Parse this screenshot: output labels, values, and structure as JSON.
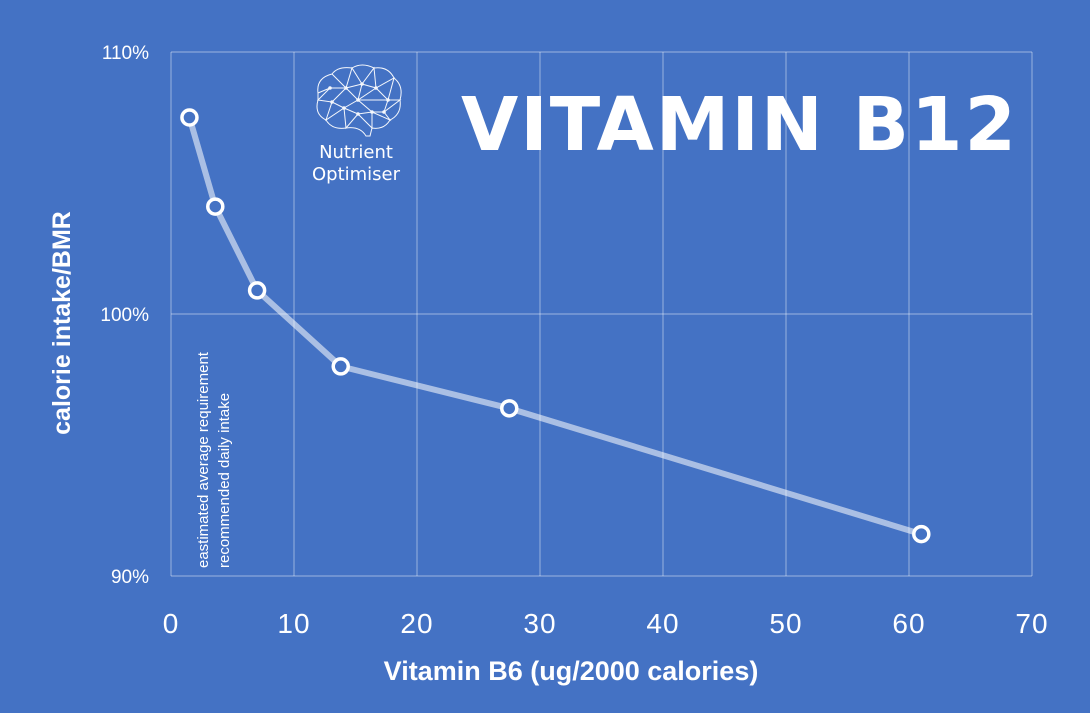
{
  "chart_data": {
    "type": "line",
    "title": "VITAMIN B12",
    "xlabel": "Vitamin B6 (ug/2000 calories)",
    "ylabel": "calorie intake/BMR",
    "xlim": [
      0,
      70
    ],
    "ylim": [
      90,
      110
    ],
    "x_ticks": [
      0,
      10,
      20,
      30,
      40,
      50,
      60,
      70
    ],
    "x_tick_labels": [
      "0",
      "10",
      "20",
      "30",
      "40",
      "50",
      "60",
      "70"
    ],
    "y_ticks": [
      90,
      100,
      110
    ],
    "y_tick_labels": [
      "90%",
      "100%",
      "110%"
    ],
    "grid": true,
    "series": [
      {
        "name": "calorie intake/BMR",
        "x": [
          1.5,
          3.6,
          7.0,
          13.8,
          27.5,
          61.0
        ],
        "y": [
          107.5,
          104.1,
          100.9,
          98.0,
          96.4,
          91.6
        ]
      }
    ],
    "annotations": [
      "eastimated average requirement",
      "recommended daily intake"
    ]
  },
  "logo": {
    "icon": "brain-network-icon",
    "line1": "Nutrient",
    "line2": "Optimiser"
  }
}
